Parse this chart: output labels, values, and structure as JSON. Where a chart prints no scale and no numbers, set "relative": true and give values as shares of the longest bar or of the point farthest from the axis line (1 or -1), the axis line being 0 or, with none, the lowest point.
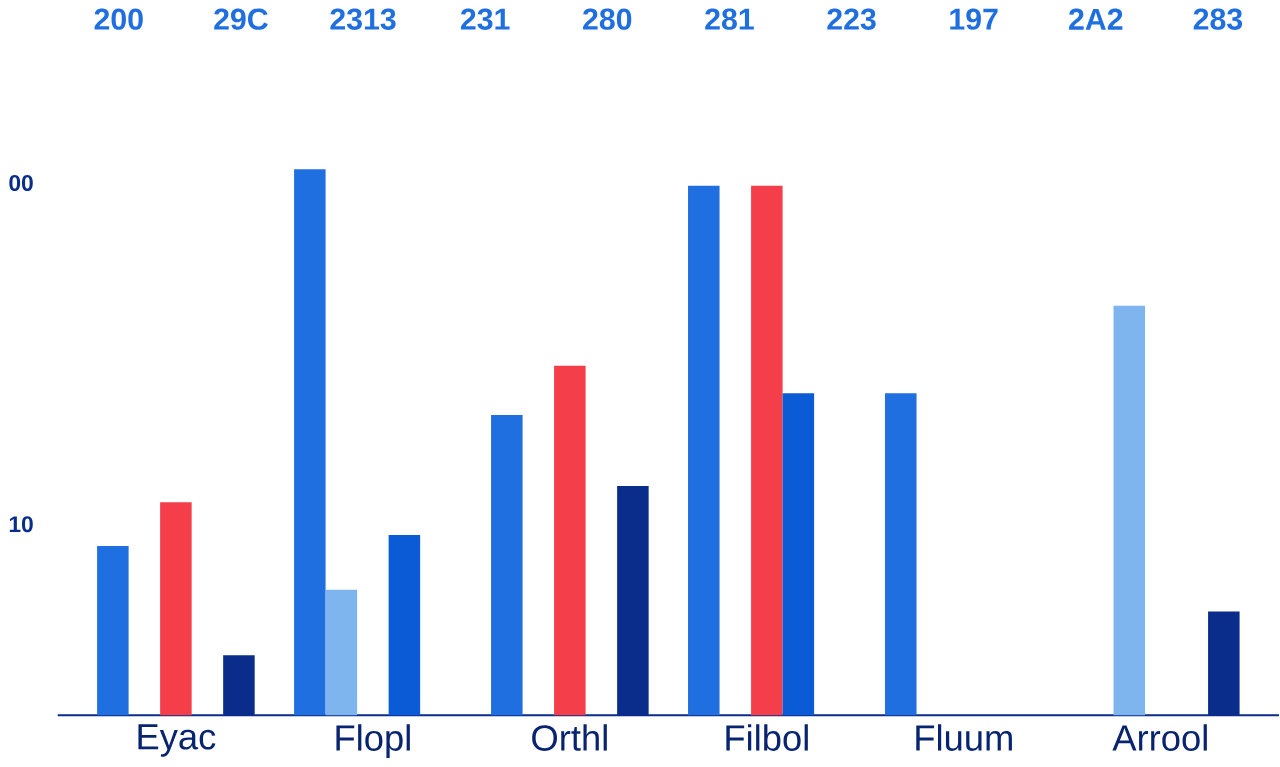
{
  "chart_data": {
    "type": "bar",
    "relative": true,
    "categories": [
      "Eyac",
      "Flopl",
      "Orthl",
      "Filbol",
      "Fluum",
      "Arrool"
    ],
    "series": [
      {
        "color": "#1f6fe0",
        "values": [
          0.31,
          1.0,
          0.55,
          0.97,
          0.59,
          null
        ]
      },
      {
        "color": "#7fb5ef",
        "values": [
          null,
          0.23,
          null,
          null,
          null,
          0.75
        ]
      },
      {
        "color": "#f43f4a",
        "values": [
          0.39,
          null,
          0.64,
          0.97,
          null,
          null
        ]
      },
      {
        "color": "#0b5ad6",
        "values": [
          null,
          0.33,
          null,
          0.59,
          null,
          null
        ]
      },
      {
        "color": "#0a2d8c",
        "values": [
          0.11,
          null,
          0.42,
          null,
          null,
          0.19
        ]
      }
    ],
    "annotations": [
      "00",
      "10",
      "200",
      "29C",
      "2313",
      "231",
      "280",
      "281",
      "223",
      "197",
      "2A2",
      "283"
    ]
  }
}
